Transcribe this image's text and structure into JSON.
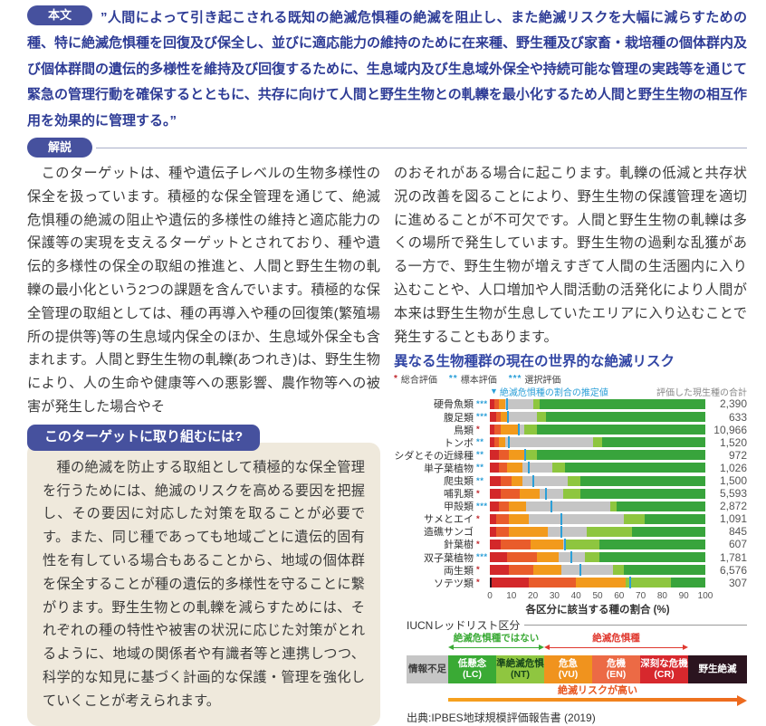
{
  "honbun": {
    "badge": "本文",
    "quote": "”人間によって引き起こされる既知の絶滅危惧種の絶滅を阻止し、また絶滅リスクを大幅に減らすための種、特に絶滅危惧種を回復及び保全し、並びに適応能力の維持のために在来種、野生種及び家畜・栽培種の個体群内及び個体群間の遺伝的多様性を維持及び回復するために、生息域内及び生息域外保全や持続可能な管理の実践等を通じて緊急の管理行動を確保するとともに、共存に向けて人間と野生生物との軋轢を最小化するため人間と野生生物の相互作用を効果的に管理する。”"
  },
  "kaisetsu": {
    "badge": "解説",
    "left_text": "　このターゲットは、種や遺伝子レベルの生物多様性の保全を扱っています。積極的な保全管理を通じて、絶滅危惧種の絶滅の阻止や遺伝的多様性の維持と適応能力の保護等の実現を支えるターゲットとされており、種や遺伝的多様性の保全の取組の推進と、人間と野生生物の軋轢の最小化という2つの課題を含んでいます。積極的な保全管理の取組としては、種の再導入や種の回復策(繁殖場所の提供等)等の生息域内保全のほか、生息域外保全も含まれます。人間と野生生物の軋轢(あつれき)は、野生生物により、人の生命や健康等への悪影響、農作物等への被害が発生した場合やそ",
    "right_text": "のおそれがある場合に起こります。軋轢の低減と共存状況の改善を図ることにより、野生生物の保護管理を適切に進めることが不可欠です。人間と野生生物の軋轢は多くの場所で発生しています。野生生物の過剰な乱獲がある一方で、野生生物が増えすぎて人間の生活圏内に入り込むことや、人口増加や人間活動の活発化により人間が本来は野生生物が生息していたエリアに入り込むことで発生することもあります。"
  },
  "target_box": {
    "title": "このターゲットに取り組むには?",
    "body": "　種の絶滅を防止する取組として積極的な保全管理を行うためには、絶滅のリスクを高める要因を把握し、その要因に対応した対策を取ることが必要です。また、同じ種であっても地域ごとに遺伝的固有性を有している場合もあることから、地域の個体群を保全することが種の遺伝的多様性を守ることに繋がります。野生生物との軋轢を減らすためには、それぞれの種の特性や被害の状況に応じた対策がとれるように、地域の関係者や有識者等と連携しつつ、科学的な知見に基づく計画的な保護・管理を強化していくことが考えられます。"
  },
  "chart_data": {
    "type": "bar",
    "orientation": "horizontal-stacked",
    "title": "異なる生物種群の現在の世界的な絶滅リスク",
    "eval_legend": [
      {
        "stars": "*",
        "label": "総合評価",
        "color": "#c0272d"
      },
      {
        "stars": "**",
        "label": "標本評価",
        "color": "#2b9fd8"
      },
      {
        "stars": "***",
        "label": "選択評価",
        "color": "#2b9fd8"
      }
    ],
    "annotation": {
      "marker": "▼",
      "text": "絶滅危惧種の割合の推定値"
    },
    "right_header": "評価した現生種の合計",
    "xlabel": "各区分に該当する種の割合 (%)",
    "x_ticks": [
      0,
      10,
      20,
      30,
      40,
      50,
      60,
      70,
      80,
      90,
      100
    ],
    "x_max": 100,
    "legend_note": "segments are % of species per IUCN category; tick = estimated % threatened",
    "segment_order": [
      "ew",
      "cr",
      "en",
      "vu",
      "dd",
      "nt",
      "lc"
    ],
    "segment_names": {
      "ew": "野生絶滅",
      "cr": "深刻な危機(CR)",
      "en": "危機(EN)",
      "vu": "危急(VU)",
      "dd": "情報不足",
      "nt": "準絶滅危惧(NT)",
      "lc": "低懸念(LC)"
    },
    "colors": {
      "ew": "#2b141f",
      "cr": "#d3282a",
      "en": "#e95c2b",
      "vu": "#f29a1c",
      "dd": "#c5c5c5",
      "nt": "#8ec63f",
      "lc": "#38a43c",
      "tick": "#2b9fd8"
    },
    "rows": [
      {
        "label": "硬骨魚類",
        "stars": "***",
        "star_color": "#2b9fd8",
        "total": "2,390",
        "tick": 8,
        "segments": {
          "ew": 0,
          "cr": 2,
          "en": 2,
          "vu": 3,
          "dd": 13,
          "nt": 3,
          "lc": 77
        }
      },
      {
        "label": "腹足類",
        "stars": "***",
        "star_color": "#2b9fd8",
        "total": "633",
        "tick": 8.5,
        "segments": {
          "ew": 0,
          "cr": 3,
          "en": 2,
          "vu": 3,
          "dd": 14,
          "nt": 4,
          "lc": 74
        }
      },
      {
        "label": "鳥類",
        "stars": "*",
        "star_color": "#c0272d",
        "total": "10,966",
        "tick": 13.5,
        "segments": {
          "ew": 0,
          "cr": 2,
          "en": 3,
          "vu": 8,
          "dd": 3,
          "nt": 6,
          "lc": 78
        }
      },
      {
        "label": "トンボ",
        "stars": "**",
        "star_color": "#2b9fd8",
        "total": "1,520",
        "tick": 9,
        "segments": {
          "ew": 0,
          "cr": 2,
          "en": 2,
          "vu": 3,
          "dd": 41,
          "nt": 4,
          "lc": 48
        }
      },
      {
        "label": "シダとその近縁種",
        "stars": "**",
        "star_color": "#2b9fd8",
        "total": "972",
        "tick": 16.5,
        "segments": {
          "ew": 0,
          "cr": 4,
          "en": 5,
          "vu": 7,
          "dd": 1,
          "nt": 5,
          "lc": 78
        }
      },
      {
        "label": "単子葉植物",
        "stars": "**",
        "star_color": "#2b9fd8",
        "total": "1,026",
        "tick": 18,
        "segments": {
          "ew": 0,
          "cr": 4,
          "en": 4,
          "vu": 7,
          "dd": 14,
          "nt": 6,
          "lc": 65
        }
      },
      {
        "label": "爬虫類",
        "stars": "**",
        "star_color": "#2b9fd8",
        "total": "1,500",
        "tick": 20,
        "segments": {
          "ew": 0,
          "cr": 5,
          "en": 5,
          "vu": 5,
          "dd": 21,
          "nt": 6,
          "lc": 58
        }
      },
      {
        "label": "哺乳類",
        "stars": "*",
        "star_color": "#c0272d",
        "total": "5,593",
        "tick": 26,
        "segments": {
          "ew": 0,
          "cr": 5,
          "en": 9,
          "vu": 9,
          "dd": 11,
          "nt": 8,
          "lc": 58
        }
      },
      {
        "label": "甲殻類",
        "stars": "***",
        "star_color": "#2b9fd8",
        "total": "2,872",
        "tick": 28.5,
        "segments": {
          "ew": 0,
          "cr": 4,
          "en": 5,
          "vu": 8,
          "dd": 39,
          "nt": 3,
          "lc": 41
        }
      },
      {
        "label": "サメとエイ",
        "stars": "*",
        "star_color": "#c0272d",
        "total": "1,091",
        "tick": 33,
        "segments": {
          "ew": 0,
          "cr": 3,
          "en": 6,
          "vu": 9,
          "dd": 44,
          "nt": 10,
          "lc": 28
        }
      },
      {
        "label": "造礁サンゴ",
        "stars": "",
        "star_color": "#c0272d",
        "total": "845",
        "tick": 33,
        "segments": {
          "ew": 0,
          "cr": 3,
          "en": 6,
          "vu": 18,
          "dd": 18,
          "nt": 21,
          "lc": 34
        }
      },
      {
        "label": "針葉樹",
        "stars": "*",
        "star_color": "#c0272d",
        "total": "607",
        "tick": 35,
        "segments": {
          "ew": 0,
          "cr": 5,
          "en": 14,
          "vu": 15,
          "dd": 1,
          "nt": 16,
          "lc": 49
        }
      },
      {
        "label": "双子葉植物",
        "stars": "***",
        "star_color": "#2b9fd8",
        "total": "1,781",
        "tick": 38,
        "segments": {
          "ew": 0,
          "cr": 8,
          "en": 14,
          "vu": 10,
          "dd": 12,
          "nt": 7,
          "lc": 49
        }
      },
      {
        "label": "両生類",
        "stars": "*",
        "star_color": "#c0272d",
        "total": "6,576",
        "tick": 42,
        "segments": {
          "ew": 0,
          "cr": 9,
          "en": 11,
          "vu": 13,
          "dd": 24,
          "nt": 5,
          "lc": 38
        }
      },
      {
        "label": "ソテツ類",
        "stars": "*",
        "star_color": "#c0272d",
        "total": "307",
        "tick": 65,
        "segments": {
          "ew": 1,
          "cr": 17,
          "en": 22,
          "vu": 23,
          "dd": 0,
          "nt": 21,
          "lc": 16
        }
      }
    ]
  },
  "iucn": {
    "title": "IUCNレッドリスト区分",
    "not_threatened_label": "絶滅危惧種ではない",
    "threatened_label": "絶滅危惧種",
    "cells": [
      {
        "name": "情報不足",
        "code": "",
        "bg": "#c6c6c6",
        "fg": "#3c3c3c"
      },
      {
        "name": "低懸念",
        "code": "(LC)",
        "bg": "#3aaa35",
        "fg": "#ffffff"
      },
      {
        "name": "準絶滅危惧",
        "code": "(NT)",
        "bg": "#8fc640",
        "fg": "#17451a"
      },
      {
        "name": "危急",
        "code": "(VU)",
        "bg": "#f0931e",
        "fg": "#ffffff"
      },
      {
        "name": "危機",
        "code": "(EN)",
        "bg": "#ec6a45",
        "fg": "#ffffff"
      },
      {
        "name": "深刻な危機",
        "code": "(CR)",
        "bg": "#d7282d",
        "fg": "#ffffff"
      },
      {
        "name": "野生絶滅",
        "code": "",
        "bg": "#2b141f",
        "fg": "#ffffff"
      }
    ],
    "risk_label": "絶滅リスクが高い"
  },
  "source": "出典:IPBES地球規模評価報告書 (2019)"
}
